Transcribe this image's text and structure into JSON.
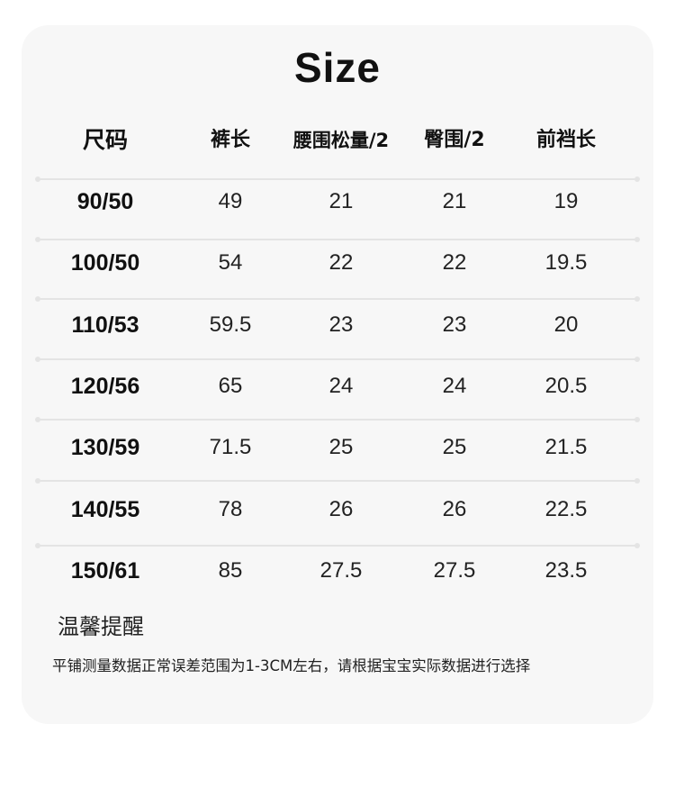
{
  "title": "Size",
  "headers": [
    "尺码",
    "裤长",
    "腰围松量/2",
    "臀围/2",
    "前裆长"
  ],
  "rows": [
    [
      "90/50",
      "49",
      "21",
      "21",
      "19"
    ],
    [
      "100/50",
      "54",
      "22",
      "22",
      "19.5"
    ],
    [
      "110/53",
      "59.5",
      "23",
      "23",
      "20"
    ],
    [
      "120/56",
      "65",
      "24",
      "24",
      "20.5"
    ],
    [
      "130/59",
      "71.5",
      "25",
      "25",
      "21.5"
    ],
    [
      "140/55",
      "78",
      "26",
      "26",
      "22.5"
    ],
    [
      "150/61",
      "85",
      "27.5",
      "27.5",
      "23.5"
    ]
  ],
  "note": {
    "title": "温馨提醒",
    "text": "平铺测量数据正常误差范围为1-3CM左右，请根据宝宝实际数据进行选择"
  },
  "colors": {
    "card_bg": "#f7f7f7",
    "divider": "#e4e4e4",
    "text": "#111111"
  }
}
